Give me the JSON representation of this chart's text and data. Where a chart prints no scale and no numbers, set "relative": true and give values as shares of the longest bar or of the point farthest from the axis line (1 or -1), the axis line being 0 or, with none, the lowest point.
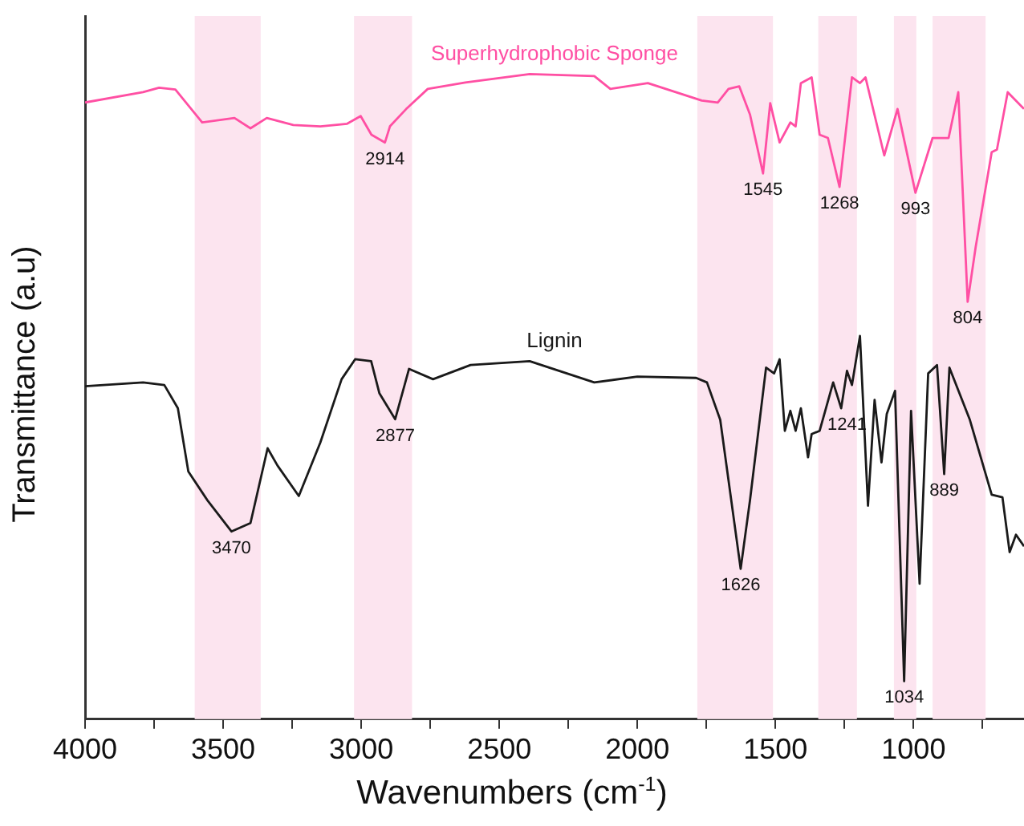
{
  "chart_data": {
    "type": "line",
    "xlabel": "Wavenumbers (cm$^{-1}$)",
    "ylabel": "Transmittance (a.u)",
    "relative": true,
    "tick_labels": "x",
    "grid": false,
    "xlim": [
      4000,
      600
    ],
    "xticks": [
      4000,
      {
        "value": 3750,
        "label": null
      },
      3500,
      {
        "value": 3250,
        "label": null
      },
      3000,
      {
        "value": 2750,
        "label": null
      },
      2500,
      {
        "value": 2250,
        "label": null
      },
      2000,
      {
        "value": 1750,
        "label": null
      },
      1500,
      {
        "value": 1250,
        "label": null
      },
      1000,
      {
        "value": 750,
        "label": null
      }
    ],
    "series": [
      {
        "name": "Superhydrophobic Sponge",
        "color": "#ff4fa3",
        "x": [
          4000,
          3790,
          3732,
          3673,
          3576,
          3459,
          3401,
          3342,
          3246,
          3148,
          3051,
          3002,
          2963,
          2914,
          2896,
          2837,
          2759,
          2623,
          2390,
          2156,
          2098,
          1962,
          1767,
          1709,
          1670,
          1631,
          1592,
          1545,
          1519,
          1485,
          1446,
          1427,
          1408,
          1369,
          1340,
          1310,
          1268,
          1223,
          1194,
          1174,
          1106,
          1058,
          993,
          931,
          873,
          838,
          804,
          775,
          717,
          698,
          659,
          600
        ],
        "values": [
          0.956,
          0.972,
          0.979,
          0.976,
          0.925,
          0.932,
          0.916,
          0.932,
          0.921,
          0.919,
          0.923,
          0.935,
          0.906,
          0.894,
          0.919,
          0.946,
          0.977,
          0.987,
          1,
          0.997,
          0.977,
          0.986,
          0.959,
          0.956,
          0.977,
          0.981,
          0.937,
          0.846,
          0.955,
          0.894,
          0.925,
          0.919,
          0.986,
          0.995,
          0.906,
          0.901,
          0.825,
          0.995,
          0.986,
          0.995,
          0.874,
          0.946,
          0.816,
          0.901,
          0.901,
          0.972,
          0.647,
          0.732,
          0.879,
          0.883,
          0.972,
          0.946
        ]
      },
      {
        "name": "Lignin",
        "color": "#1a1a1a",
        "x": [
          4000,
          3790,
          3713,
          3664,
          3626,
          3558,
          3470,
          3401,
          3339,
          3303,
          3226,
          3148,
          3071,
          3022,
          2964,
          2934,
          2877,
          2827,
          2740,
          2604,
          2390,
          2156,
          2000,
          1787,
          1748,
          1700,
          1626,
          1592,
          1534,
          1505,
          1485,
          1466,
          1446,
          1427,
          1408,
          1382,
          1369,
          1340,
          1291,
          1262,
          1241,
          1223,
          1194,
          1165,
          1141,
          1116,
          1097,
          1067,
          1034,
          1009,
          978,
          947,
          915,
          889,
          870,
          796,
          717,
          678,
          652,
          629,
          600
        ],
        "values": [
          0.516,
          0.522,
          0.518,
          0.482,
          0.384,
          0.34,
          0.291,
          0.304,
          0.42,
          0.393,
          0.346,
          0.429,
          0.527,
          0.558,
          0.555,
          0.505,
          0.465,
          0.543,
          0.527,
          0.549,
          0.555,
          0.522,
          0.531,
          0.529,
          0.522,
          0.464,
          0.233,
          0.34,
          0.545,
          0.536,
          0.558,
          0.447,
          0.478,
          0.447,
          0.482,
          0.406,
          0.442,
          0.447,
          0.522,
          0.482,
          0.54,
          0.518,
          0.594,
          0.331,
          0.495,
          0.398,
          0.473,
          0.509,
          0.059,
          0.478,
          0.21,
          0.536,
          0.549,
          0.38,
          0.545,
          0.464,
          0.348,
          0.344,
          0.259,
          0.286,
          0.268
        ]
      }
    ],
    "bands": [
      {
        "axis": "x",
        "from": 3603,
        "to": 3364,
        "color": "#fce4ef"
      },
      {
        "axis": "x",
        "from": 3026,
        "to": 2816,
        "color": "#fce4ef"
      },
      {
        "axis": "x",
        "from": 1783,
        "to": 1509,
        "color": "#fce4ef"
      },
      {
        "axis": "x",
        "from": 1345,
        "to": 1205,
        "color": "#fce4ef"
      },
      {
        "axis": "x",
        "from": 1071,
        "to": 990,
        "color": "#fce4ef"
      },
      {
        "axis": "x",
        "from": 931,
        "to": 739,
        "color": "#fce4ef"
      }
    ],
    "annotations": [
      {
        "text": "2914",
        "x": 2914,
        "y": 0.894
      },
      {
        "text": "1545",
        "x": 1545,
        "y": 0.846
      },
      {
        "text": "1268",
        "x": 1268,
        "y": 0.825
      },
      {
        "text": "993",
        "x": 993,
        "y": 0.816
      },
      {
        "text": "804",
        "x": 804,
        "y": 0.647
      },
      {
        "text": "3470",
        "x": 3470,
        "y": 0.291
      },
      {
        "text": "2877",
        "x": 2877,
        "y": 0.465
      },
      {
        "text": "1626",
        "x": 1626,
        "y": 0.233
      },
      {
        "text": "1241",
        "x": 1241,
        "y": 0.482
      },
      {
        "text": "1034",
        "x": 1034,
        "y": 0.059
      },
      {
        "text": "889",
        "x": 889,
        "y": 0.38
      }
    ]
  }
}
